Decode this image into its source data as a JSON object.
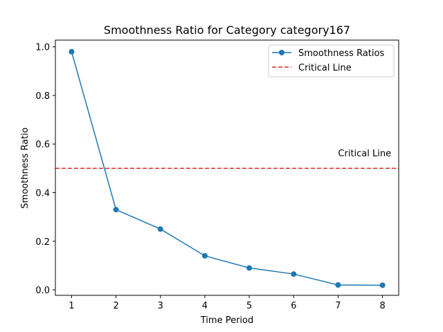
{
  "chart_data": {
    "type": "line",
    "title": "Smoothness Ratio for Category category167",
    "xlabel": "Time Period",
    "ylabel": "Smoothness Ratio",
    "xlim": [
      0.635,
      8.365
    ],
    "ylim": [
      -0.0227,
      1.0277
    ],
    "xticks": [
      1,
      2,
      3,
      4,
      5,
      6,
      7,
      8
    ],
    "yticks": [
      0.0,
      0.2,
      0.4,
      0.6,
      0.8,
      1.0
    ],
    "ytick_labels": [
      "0.0",
      "0.2",
      "0.4",
      "0.6",
      "0.8",
      "1.0"
    ],
    "series": [
      {
        "name": "Smoothness Ratios",
        "color": "#1f77b4",
        "marker": "circle",
        "x": [
          1,
          2,
          3,
          4,
          5,
          6,
          7,
          8
        ],
        "y": [
          0.98,
          0.33,
          0.25,
          0.14,
          0.09,
          0.065,
          0.02,
          0.019
        ]
      }
    ],
    "reference_lines": [
      {
        "name": "Critical Line",
        "value": 0.5,
        "orientation": "horizontal",
        "style": "dashed",
        "color": "#d62728"
      }
    ],
    "annotations": [
      {
        "text": "Critical Line",
        "x": 7,
        "y": 0.55
      }
    ],
    "legend": {
      "position": "top-right",
      "entries": [
        "Smoothness Ratios",
        "Critical Line"
      ]
    },
    "grid": false
  }
}
